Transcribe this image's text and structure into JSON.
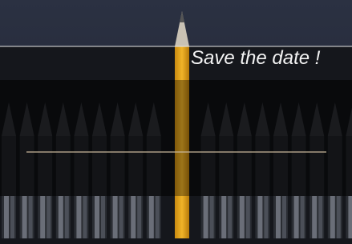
{
  "title": "Save the date !"
}
